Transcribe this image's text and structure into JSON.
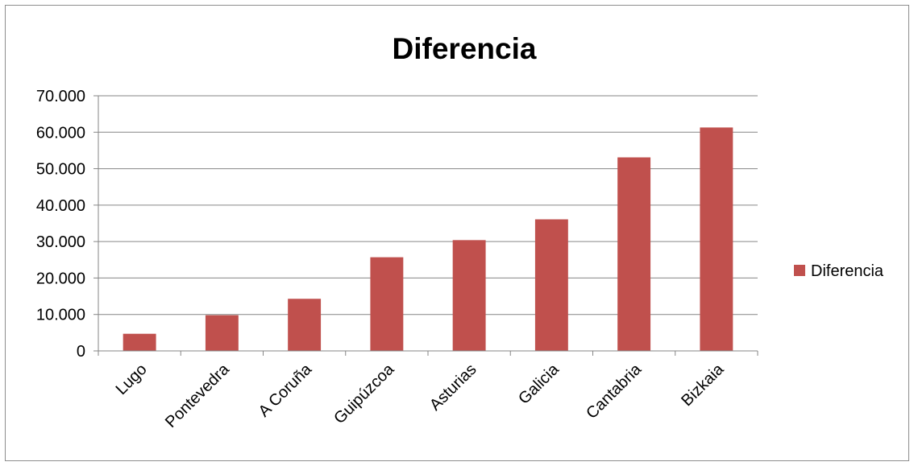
{
  "chart_data": {
    "type": "bar",
    "title": "Diferencia",
    "xlabel": "",
    "ylabel": "",
    "categories": [
      "Lugo",
      "Pontevedra",
      "A Coruña",
      "Guipúzcoa",
      "Asturias",
      "Galicia",
      "Cantabria",
      "Bizkaia"
    ],
    "series": [
      {
        "name": "Diferencia",
        "color": "#c0504d",
        "values": [
          4700,
          9800,
          14300,
          25700,
          30400,
          36100,
          53100,
          61300
        ]
      }
    ],
    "ylim": [
      0,
      70000
    ],
    "yticks": [
      0,
      10000,
      20000,
      30000,
      40000,
      50000,
      60000,
      70000
    ],
    "ytick_labels": [
      "0",
      "10.000",
      "20.000",
      "30.000",
      "40.000",
      "50.000",
      "60.000",
      "70.000"
    ],
    "grid": true,
    "legend_position": "right"
  }
}
